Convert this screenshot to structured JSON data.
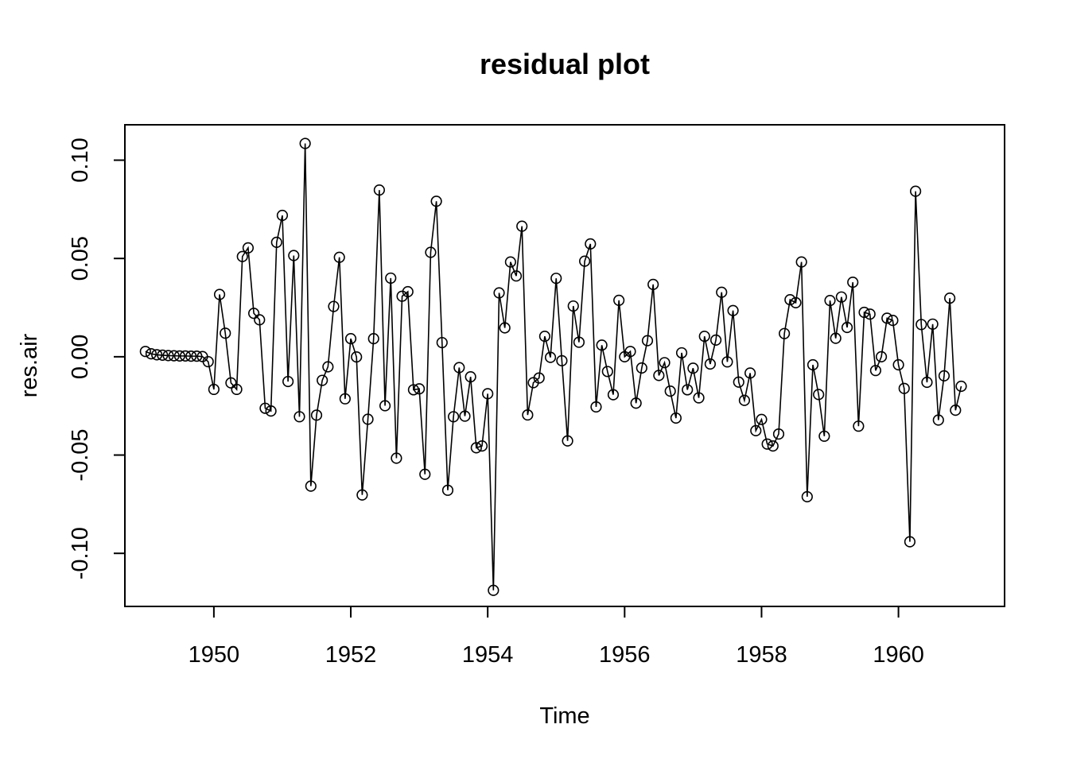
{
  "chart_data": {
    "type": "line",
    "title": "residual plot",
    "xlabel": "Time",
    "ylabel": "res.air",
    "xlim": [
      1948.7,
      1961.55
    ],
    "ylim": [
      -0.127,
      0.118
    ],
    "x_ticks": [
      1950,
      1952,
      1954,
      1956,
      1958,
      1960
    ],
    "x_tick_labels": [
      "1950",
      "1952",
      "1954",
      "1956",
      "1958",
      "1960"
    ],
    "y_ticks": [
      -0.1,
      -0.05,
      0.0,
      0.05,
      0.1
    ],
    "y_tick_labels": [
      "-0.10",
      "-0.05",
      "0.00",
      "0.05",
      "0.10"
    ],
    "grid": false,
    "marker": "open-circle",
    "line_color": "#000000",
    "x_start": 1949,
    "x_step_months": 1,
    "series": [
      {
        "values": [
          0.0027,
          0.0015,
          0.001,
          0.0008,
          0.0006,
          0.0005,
          0.0004,
          0.0004,
          0.0003,
          0.0003,
          0.0001,
          -0.0025,
          -0.0166,
          0.0317,
          0.012,
          -0.0133,
          -0.0166,
          0.051,
          0.0554,
          0.0221,
          0.0188,
          -0.0262,
          -0.0276,
          0.0582,
          0.0719,
          -0.0126,
          0.0515,
          -0.0305,
          0.1085,
          -0.0658,
          -0.0297,
          -0.012,
          -0.0051,
          0.0256,
          0.0506,
          -0.0214,
          0.0092,
          -0.0001,
          -0.0703,
          -0.0318,
          0.0092,
          0.0848,
          -0.0249,
          0.04,
          -0.0516,
          0.0308,
          0.0331,
          -0.0168,
          -0.0163,
          -0.0598,
          0.0531,
          0.0791,
          0.0072,
          -0.0679,
          -0.0305,
          -0.0055,
          -0.0302,
          -0.0102,
          -0.0463,
          -0.0454,
          -0.0188,
          -0.1188,
          0.0325,
          0.0147,
          0.0482,
          0.0411,
          0.0664,
          -0.0296,
          -0.0132,
          -0.0108,
          0.0104,
          -0.0003,
          0.0399,
          -0.002,
          -0.0428,
          0.0258,
          0.0074,
          0.0486,
          0.0574,
          -0.0255,
          0.0059,
          -0.0075,
          -0.0193,
          0.0287,
          0.0,
          0.0027,
          -0.0236,
          -0.0057,
          0.0082,
          0.0368,
          -0.0095,
          -0.003,
          -0.0175,
          -0.0312,
          0.002,
          -0.0168,
          -0.0058,
          -0.0209,
          0.0104,
          -0.0037,
          0.0085,
          0.0328,
          -0.0026,
          0.0235,
          -0.0129,
          -0.0222,
          -0.0083,
          -0.0376,
          -0.0319,
          -0.0444,
          -0.0454,
          -0.0393,
          0.0118,
          0.029,
          0.0275,
          0.0482,
          -0.0712,
          -0.0041,
          -0.0192,
          -0.0404,
          0.0286,
          0.0094,
          0.0304,
          0.0149,
          0.0379,
          -0.0353,
          0.0226,
          0.0217,
          -0.007,
          0.0,
          0.0196,
          0.0185,
          -0.0041,
          -0.0161,
          -0.0941,
          0.0842,
          0.0164,
          -0.013,
          0.0166,
          -0.0322,
          -0.0097,
          0.0298,
          -0.0272,
          -0.015
        ]
      }
    ]
  }
}
